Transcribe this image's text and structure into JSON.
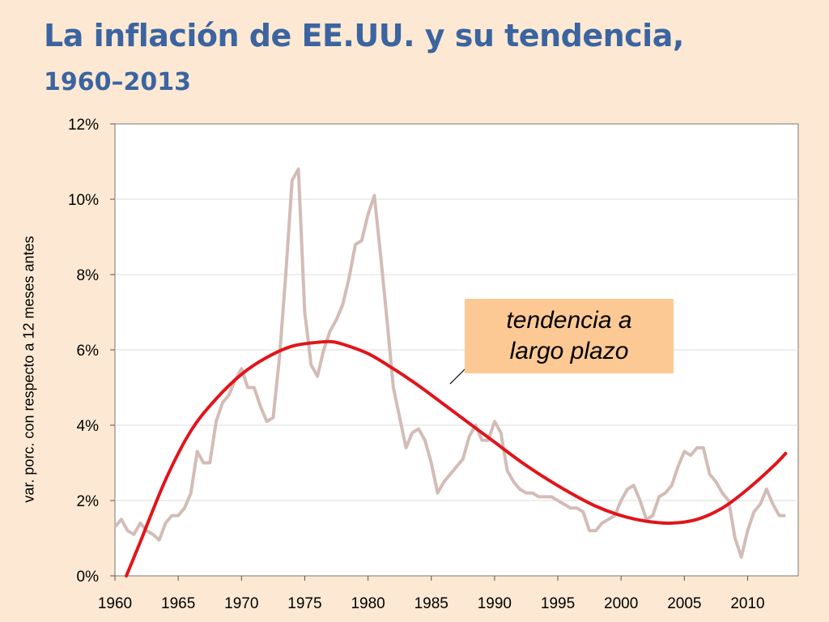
{
  "slide": {
    "title_line1": "La inflación de EE.UU. y su tendencia,",
    "title_line2": "1960–2013"
  },
  "callout": {
    "line1": "tendencia a",
    "line2": "largo plazo"
  },
  "colors": {
    "title": "#3b64a0",
    "trend": "#e0151b",
    "inflation": "#d3bcb7",
    "background": "#fde9d3",
    "callout_bg": "#fcc995"
  },
  "chart_data": {
    "type": "line",
    "title": "La inflación de EE.UU. y su tendencia, 1960–2013",
    "xlabel": "",
    "ylabel": "var. porc. con respecto a 12 meses antes",
    "xlim": [
      1960,
      2014
    ],
    "ylim": [
      0,
      12
    ],
    "x_ticks": [
      "1960",
      "1965",
      "1970",
      "1975",
      "1980",
      "1985",
      "1990",
      "1995",
      "2000",
      "2005",
      "2010"
    ],
    "y_ticks": [
      "0%",
      "2%",
      "4%",
      "6%",
      "8%",
      "10%",
      "12%"
    ],
    "grid": true,
    "annotation": "tendencia a largo plazo",
    "series": [
      {
        "name": "",
        "style": "inflation",
        "x": [
          1960,
          1960.5,
          1961,
          1961.5,
          1962,
          1962.5,
          1963,
          1963.5,
          1964,
          1964.5,
          1965,
          1965.5,
          1966,
          1966.5,
          1967,
          1967.5,
          1968,
          1968.5,
          1969,
          1969.5,
          1970,
          1970.5,
          1971,
          1971.5,
          1972,
          1972.5,
          1973,
          1973.5,
          1974,
          1974.5,
          1975,
          1975.5,
          1976,
          1976.5,
          1977,
          1977.5,
          1978,
          1978.5,
          1979,
          1979.5,
          1980,
          1980.5,
          1981,
          1981.5,
          1982,
          1982.5,
          1983,
          1983.5,
          1984,
          1984.5,
          1985,
          1985.5,
          1986,
          1986.5,
          1987,
          1987.5,
          1988,
          1988.5,
          1989,
          1989.5,
          1990,
          1990.5,
          1991,
          1991.5,
          1992,
          1992.5,
          1993,
          1993.5,
          1994,
          1994.5,
          1995,
          1995.5,
          1996,
          1996.5,
          1997,
          1997.5,
          1998,
          1998.5,
          1999,
          1999.5,
          2000,
          2000.5,
          2001,
          2001.5,
          2002,
          2002.5,
          2003,
          2003.5,
          2004,
          2004.5,
          2005,
          2005.5,
          2006,
          2006.5,
          2007,
          2007.5,
          2008,
          2008.5,
          2009,
          2009.5,
          2010,
          2010.5,
          2011,
          2011.5,
          2012,
          2012.5,
          2013
        ],
        "y": [
          1.3,
          1.5,
          1.2,
          1.1,
          1.4,
          1.2,
          1.1,
          0.95,
          1.4,
          1.6,
          1.6,
          1.8,
          2.2,
          3.3,
          3.0,
          3.0,
          4.1,
          4.6,
          4.8,
          5.2,
          5.5,
          5.0,
          5.0,
          4.5,
          4.1,
          4.2,
          5.8,
          8.0,
          10.5,
          10.8,
          7.0,
          5.6,
          5.3,
          6.0,
          6.5,
          6.8,
          7.2,
          7.9,
          8.8,
          8.9,
          9.6,
          10.1,
          8.5,
          6.8,
          5.0,
          4.2,
          3.4,
          3.8,
          3.9,
          3.6,
          3.0,
          2.2,
          2.5,
          2.7,
          2.9,
          3.1,
          3.7,
          4.0,
          3.6,
          3.6,
          4.1,
          3.8,
          2.8,
          2.5,
          2.3,
          2.2,
          2.2,
          2.1,
          2.1,
          2.1,
          2.0,
          1.9,
          1.8,
          1.8,
          1.7,
          1.2,
          1.2,
          1.4,
          1.5,
          1.6,
          2.0,
          2.3,
          2.4,
          2.0,
          1.5,
          1.6,
          2.1,
          2.2,
          2.4,
          2.9,
          3.3,
          3.2,
          3.4,
          3.4,
          2.7,
          2.5,
          2.2,
          2.0,
          1.0,
          0.5,
          1.2,
          1.7,
          1.9,
          2.3,
          1.9,
          1.6,
          1.6
        ]
      },
      {
        "name": "tendencia a largo plazo",
        "style": "trend",
        "x": [
          1960.9,
          1962,
          1964,
          1966,
          1968,
          1970,
          1972,
          1974,
          1976,
          1977,
          1978,
          1980,
          1982,
          1984,
          1986,
          1988,
          1990,
          1992,
          1994,
          1996,
          1998,
          2000,
          2002,
          2004,
          2006,
          2008,
          2010,
          2012,
          2013
        ],
        "y": [
          0.0,
          0.9,
          2.55,
          3.85,
          4.7,
          5.35,
          5.8,
          6.1,
          6.2,
          6.22,
          6.15,
          5.9,
          5.5,
          5.05,
          4.55,
          4.05,
          3.55,
          3.05,
          2.6,
          2.2,
          1.85,
          1.6,
          1.45,
          1.4,
          1.5,
          1.8,
          2.3,
          2.9,
          3.25
        ]
      }
    ]
  }
}
